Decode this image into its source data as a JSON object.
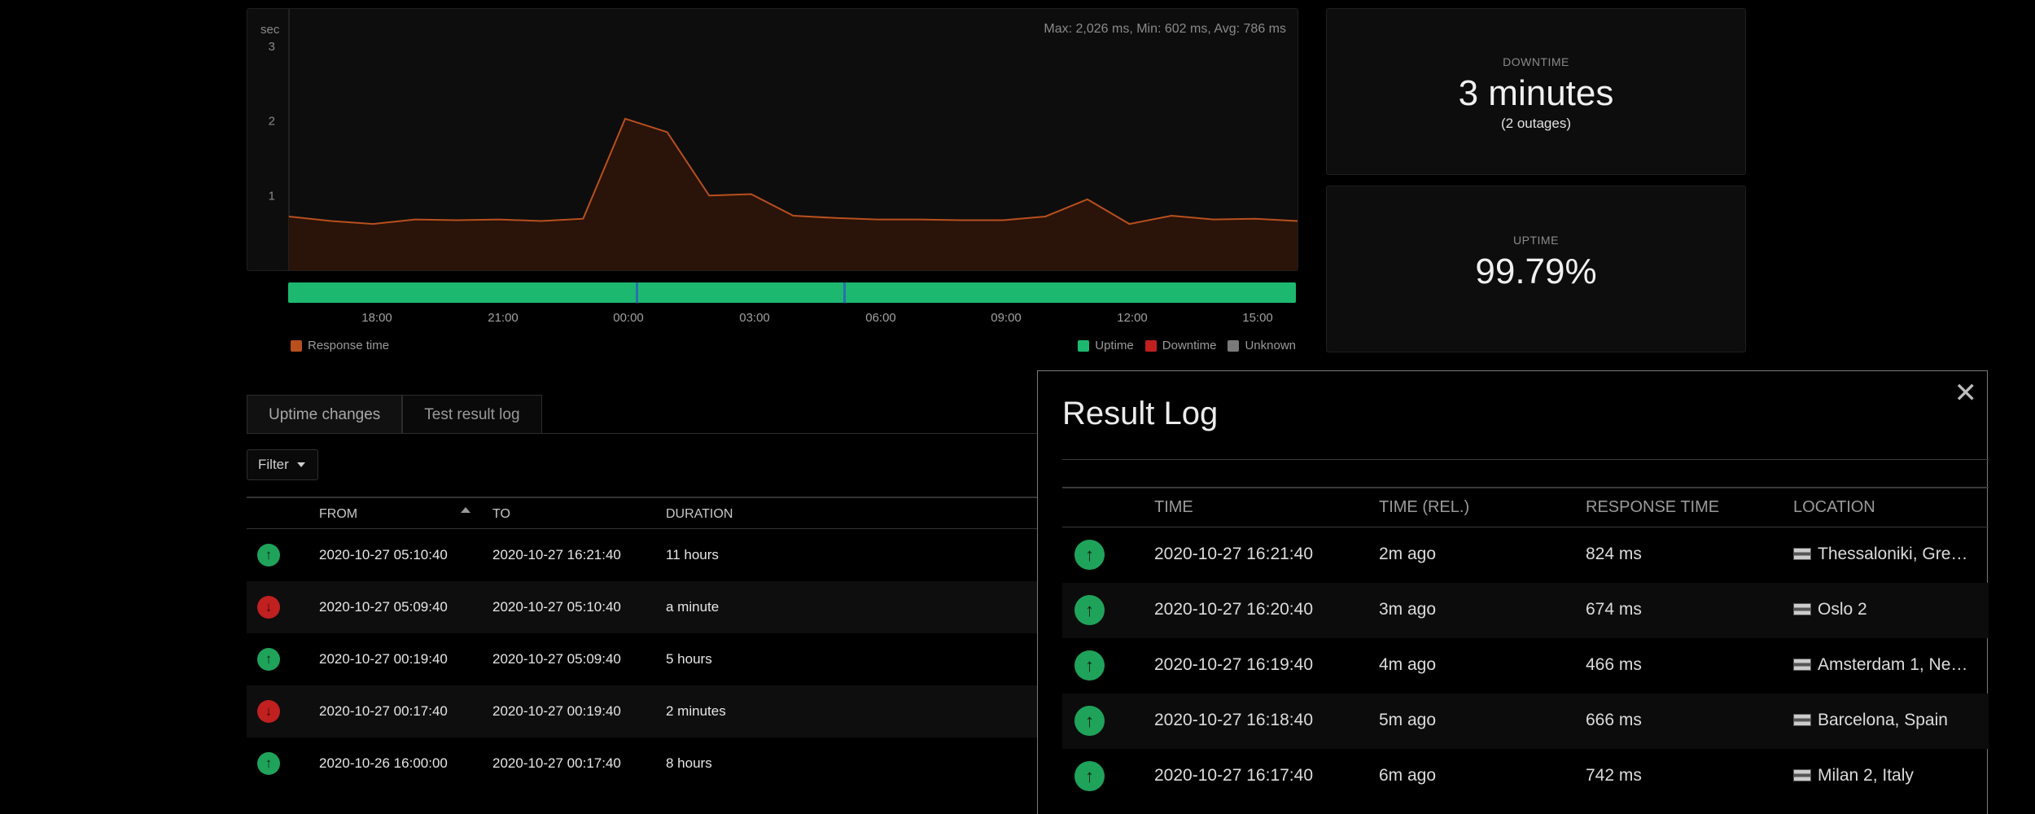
{
  "chart": {
    "y_unit": "sec",
    "stats": "Max: 2,026 ms, Min: 602 ms, Avg: 786 ms",
    "y_ticks": [
      "3",
      "2",
      "1"
    ],
    "x_ticks": [
      "18:00",
      "21:00",
      "00:00",
      "03:00",
      "06:00",
      "09:00",
      "12:00",
      "15:00"
    ],
    "legend_response": "Response time",
    "legend_uptime": "Uptime",
    "legend_downtime": "Downtime",
    "legend_unknown": "Unknown",
    "colors": {
      "response": "#b8501e",
      "uptime": "#1db870",
      "downtime": "#c0201f",
      "unknown": "#7a7a7a"
    }
  },
  "chart_data": {
    "type": "area",
    "ylabel": "sec",
    "ylim": [
      0,
      3.5
    ],
    "x_range": [
      "16:00",
      "16:21"
    ],
    "series": [
      {
        "values": [
          0.72,
          0.66,
          0.62,
          0.68,
          0.67,
          0.68,
          0.66,
          0.69,
          2.03,
          1.85,
          1.0,
          1.02,
          0.73,
          0.7,
          0.68,
          0.68,
          0.67,
          0.67,
          0.72,
          0.95,
          0.62,
          0.73,
          0.68,
          0.69,
          0.66
        ]
      }
    ]
  },
  "stats": {
    "downtime_label": "DOWNTIME",
    "downtime_value": "3 minutes",
    "downtime_sub": "(2 outages)",
    "uptime_label": "UPTIME",
    "uptime_value": "99.79%"
  },
  "tabs": [
    "Uptime changes",
    "Test result log"
  ],
  "filter_label": "Filter",
  "uptime_table": {
    "headers": {
      "from": "FROM",
      "to": "TO",
      "duration": "DURATION"
    },
    "rows": [
      {
        "status": "up",
        "from": "2020-10-27 05:10:40",
        "to": "2020-10-27 16:21:40",
        "duration": "11 hours"
      },
      {
        "status": "down",
        "from": "2020-10-27 05:09:40",
        "to": "2020-10-27 05:10:40",
        "duration": "a minute"
      },
      {
        "status": "up",
        "from": "2020-10-27 00:19:40",
        "to": "2020-10-27 05:09:40",
        "duration": "5 hours"
      },
      {
        "status": "down",
        "from": "2020-10-27 00:17:40",
        "to": "2020-10-27 00:19:40",
        "duration": "2 minutes"
      },
      {
        "status": "up",
        "from": "2020-10-26 16:00:00",
        "to": "2020-10-27 00:17:40",
        "duration": "8 hours"
      }
    ]
  },
  "result_log": {
    "title": "Result Log",
    "headers": {
      "time": "TIME",
      "time_rel": "TIME (REL.)",
      "response": "RESPONSE TIME",
      "location": "LOCATION"
    },
    "rows": [
      {
        "time": "2020-10-27 16:21:40",
        "rel": "2m ago",
        "response": "824 ms",
        "location": "Thessaloniki, Gre…"
      },
      {
        "time": "2020-10-27 16:20:40",
        "rel": "3m ago",
        "response": "674 ms",
        "location": "Oslo 2"
      },
      {
        "time": "2020-10-27 16:19:40",
        "rel": "4m ago",
        "response": "466 ms",
        "location": "Amsterdam 1, Ne…"
      },
      {
        "time": "2020-10-27 16:18:40",
        "rel": "5m ago",
        "response": "666 ms",
        "location": "Barcelona, Spain"
      },
      {
        "time": "2020-10-27 16:17:40",
        "rel": "6m ago",
        "response": "742 ms",
        "location": "Milan 2, Italy"
      }
    ]
  }
}
